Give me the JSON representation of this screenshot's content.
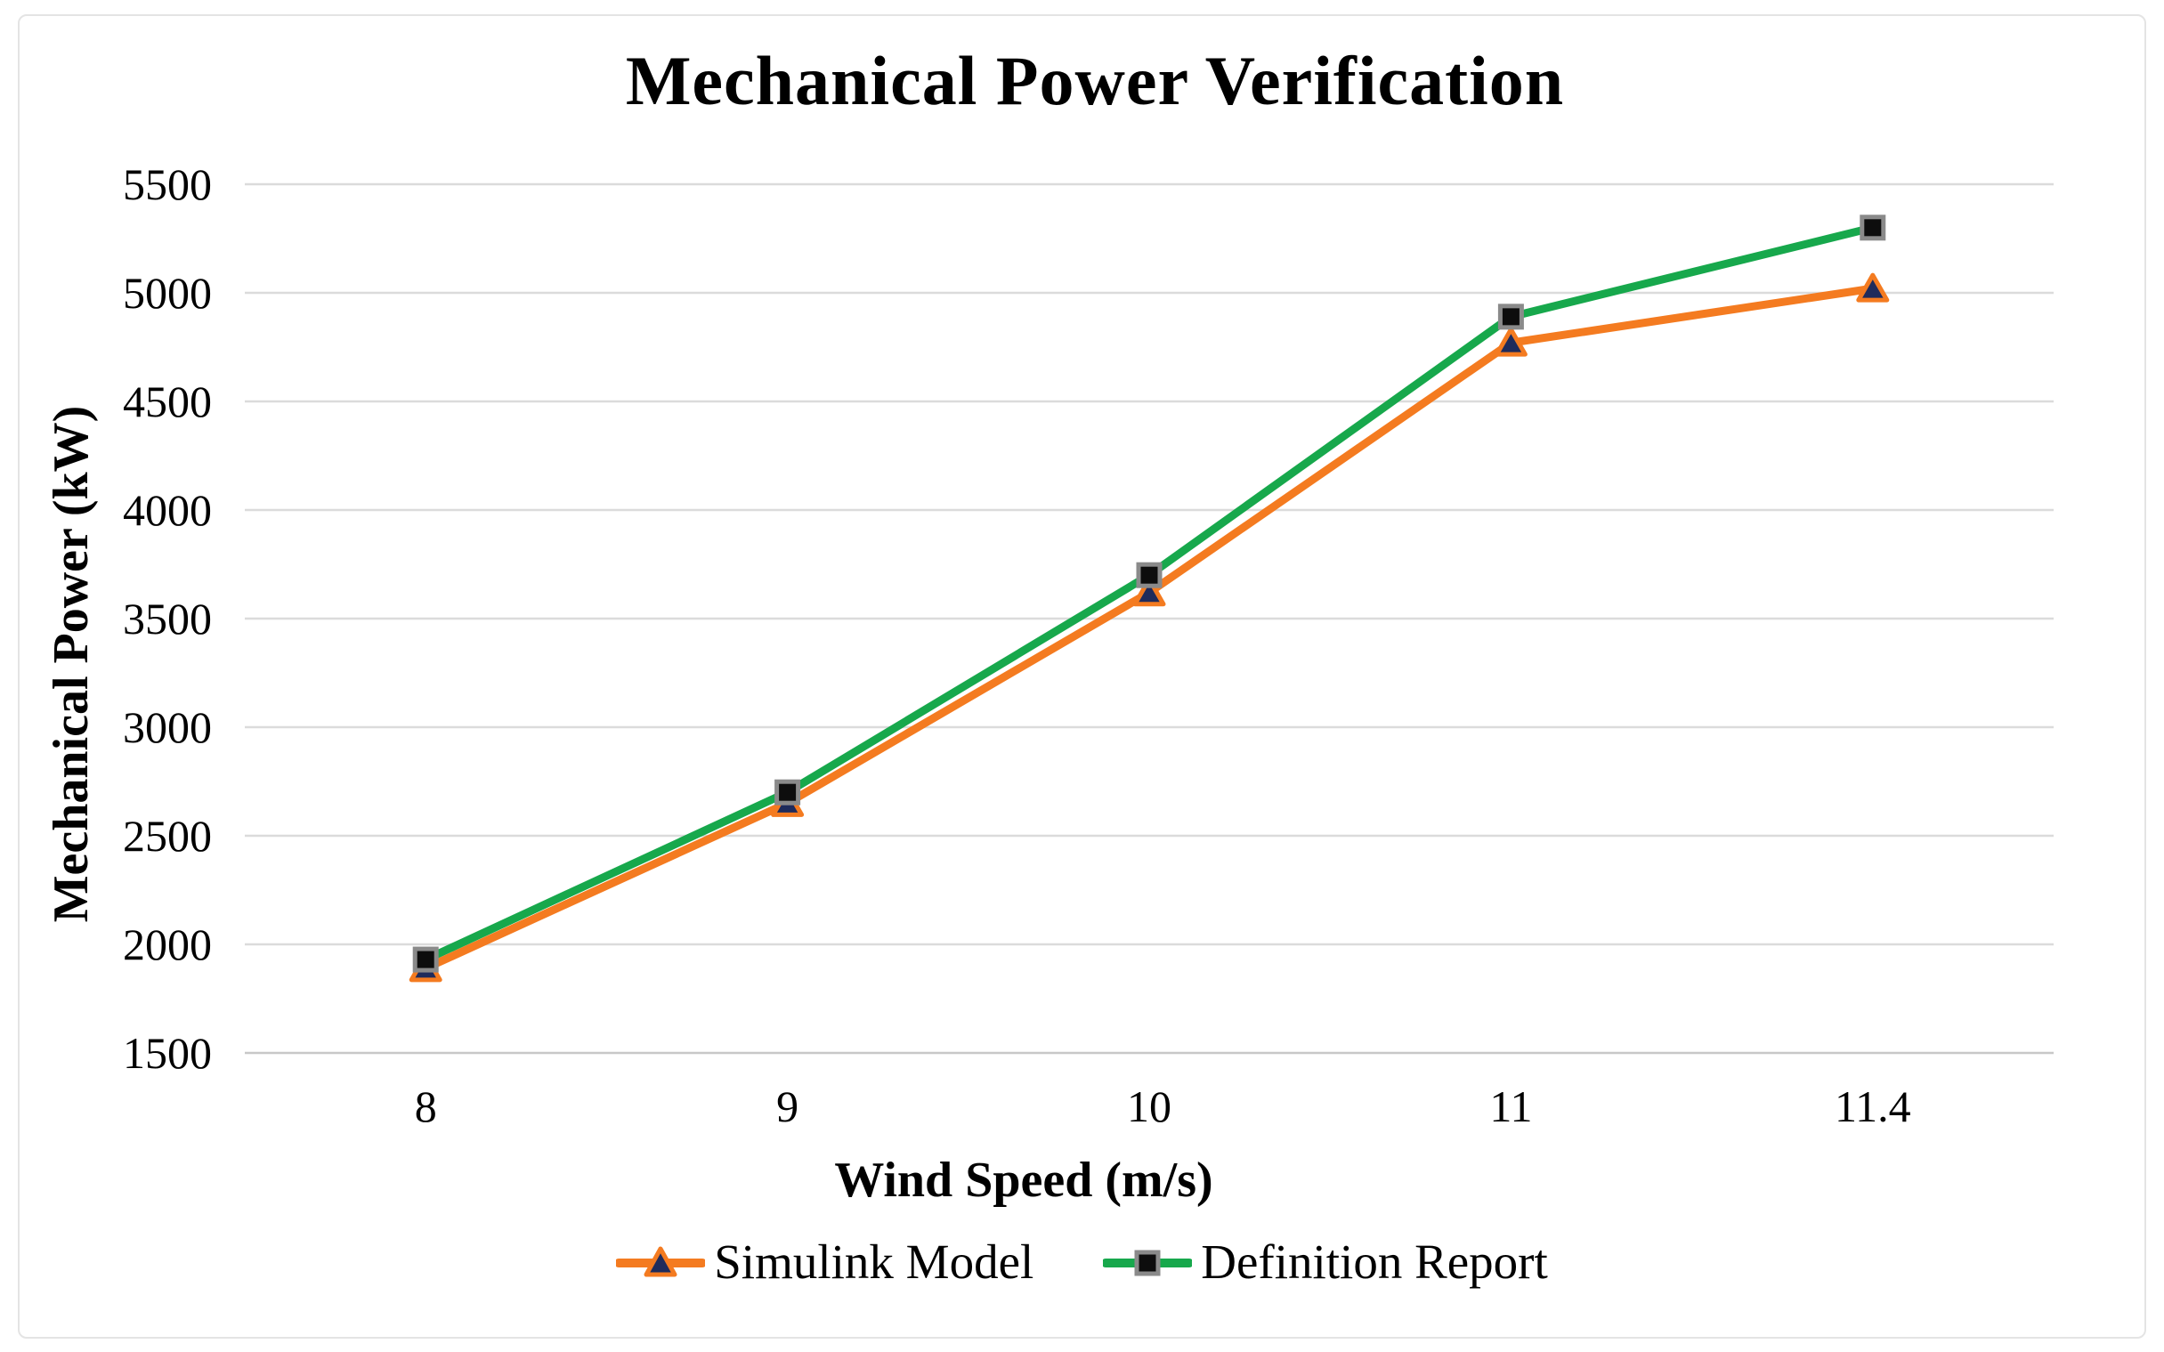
{
  "chart_data": {
    "type": "line",
    "title": "Mechanical Power Verification",
    "xlabel": "Wind Speed (m/s)",
    "ylabel": "Mechanical Power (kW)",
    "categories": [
      "8",
      "9",
      "10",
      "11",
      "11.4"
    ],
    "series": [
      {
        "name": "Simulink Model",
        "color": "#F47B20",
        "marker": "triangle",
        "marker_color": "#1F2B5B",
        "marker_outline": "#F47B20",
        "values": [
          1890,
          2650,
          3620,
          4770,
          5020
        ]
      },
      {
        "name": "Definition Report",
        "color": "#17A84C",
        "marker": "square",
        "marker_color": "#0D0D0D",
        "marker_outline": "#8A8A8A",
        "values": [
          1930,
          2700,
          3700,
          4890,
          5300
        ]
      }
    ],
    "ylim": [
      1500,
      5500
    ],
    "y_ticks": [
      5500,
      5000,
      4500,
      4000,
      3500,
      3000,
      2500,
      2000,
      1500
    ],
    "x_axis_type": "categorical",
    "grid": "horizontal",
    "legend_position": "bottom"
  },
  "colors": {
    "background": "#FFFFFF",
    "frame_border": "#E4E4E4",
    "gridline": "#DBDBDB",
    "axis_line": "#C8C8C8",
    "text": "#000000"
  }
}
